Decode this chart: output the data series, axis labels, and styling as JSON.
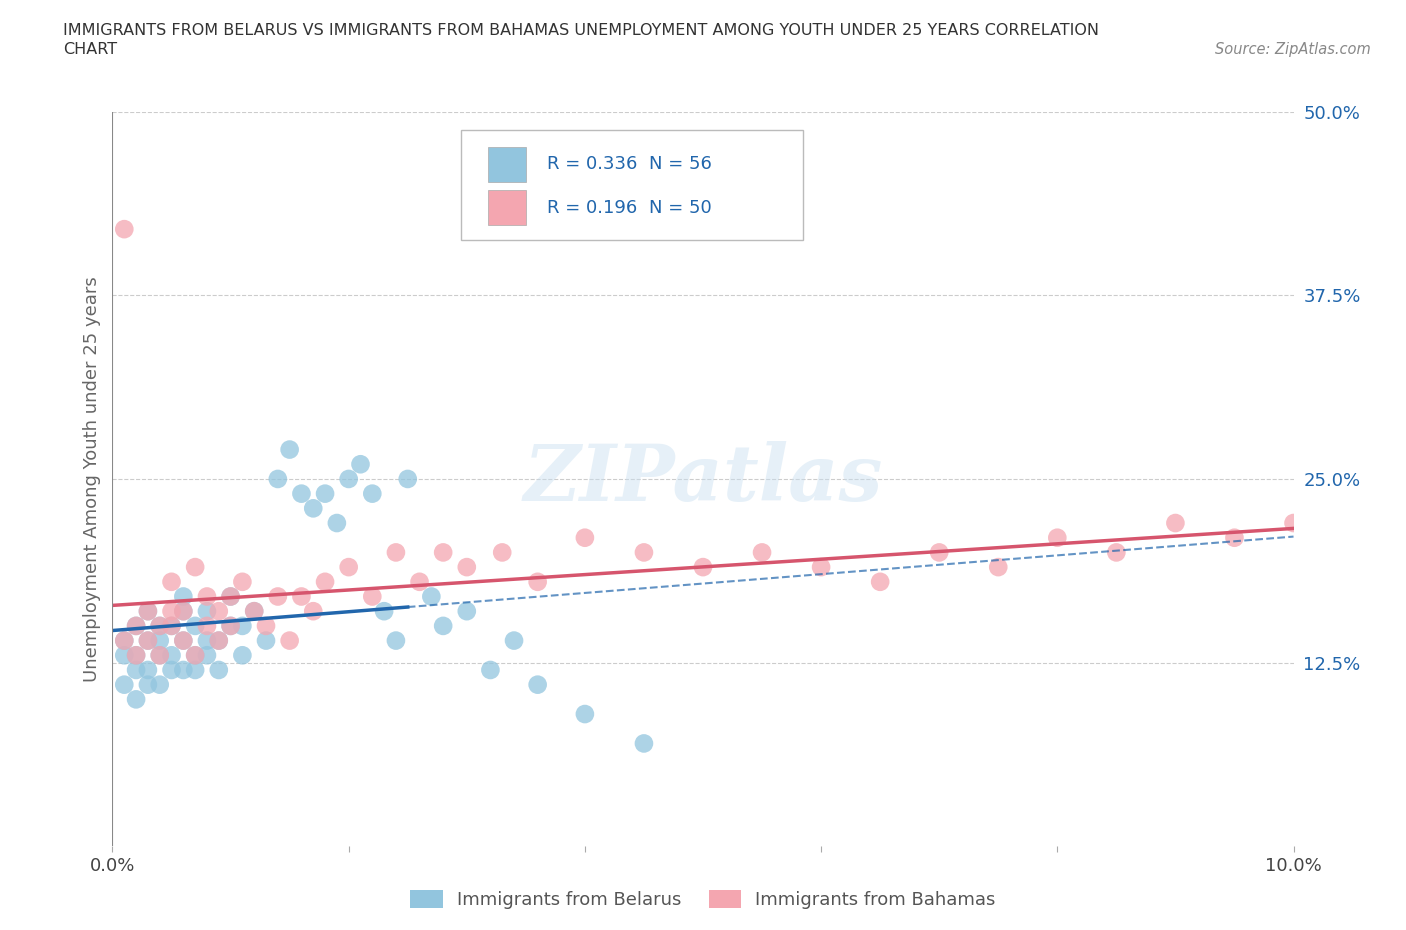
{
  "title": "IMMIGRANTS FROM BELARUS VS IMMIGRANTS FROM BAHAMAS UNEMPLOYMENT AMONG YOUTH UNDER 25 YEARS CORRELATION\nCHART",
  "source": "Source: ZipAtlas.com",
  "ylabel": "Unemployment Among Youth under 25 years",
  "legend_label1": "Immigrants from Belarus",
  "legend_label2": "Immigrants from Bahamas",
  "legend_R1": "R = 0.336",
  "legend_N1": "N = 56",
  "legend_R2": "R = 0.196",
  "legend_N2": "N = 50",
  "color1": "#92c5de",
  "color2": "#f4a6b0",
  "line_color1": "#2166ac",
  "line_color2": "#d6556d",
  "xlim": [
    0.0,
    0.1
  ],
  "ylim": [
    0.0,
    0.5
  ],
  "xtick_vals": [
    0.0,
    0.02,
    0.04,
    0.06,
    0.08,
    0.1
  ],
  "xticklabels": [
    "0.0%",
    "",
    "",
    "",
    "",
    "10.0%"
  ],
  "ytick_right": [
    0.125,
    0.25,
    0.375,
    0.5
  ],
  "ytick_right_labels": [
    "12.5%",
    "25.0%",
    "37.5%",
    "50.0%"
  ],
  "watermark": "ZIPatlas",
  "belarus_x": [
    0.001,
    0.001,
    0.001,
    0.002,
    0.002,
    0.002,
    0.002,
    0.003,
    0.003,
    0.003,
    0.003,
    0.004,
    0.004,
    0.004,
    0.004,
    0.005,
    0.005,
    0.005,
    0.006,
    0.006,
    0.006,
    0.006,
    0.007,
    0.007,
    0.007,
    0.008,
    0.008,
    0.008,
    0.009,
    0.009,
    0.01,
    0.01,
    0.011,
    0.011,
    0.012,
    0.013,
    0.014,
    0.015,
    0.016,
    0.017,
    0.018,
    0.019,
    0.02,
    0.021,
    0.022,
    0.023,
    0.024,
    0.025,
    0.027,
    0.028,
    0.03,
    0.032,
    0.034,
    0.036,
    0.04,
    0.045
  ],
  "belarus_y": [
    0.13,
    0.14,
    0.11,
    0.12,
    0.15,
    0.1,
    0.13,
    0.14,
    0.12,
    0.11,
    0.16,
    0.13,
    0.15,
    0.11,
    0.14,
    0.13,
    0.15,
    0.12,
    0.17,
    0.12,
    0.14,
    0.16,
    0.13,
    0.15,
    0.12,
    0.14,
    0.13,
    0.16,
    0.14,
    0.12,
    0.15,
    0.17,
    0.13,
    0.15,
    0.16,
    0.14,
    0.25,
    0.27,
    0.24,
    0.23,
    0.24,
    0.22,
    0.25,
    0.26,
    0.24,
    0.16,
    0.14,
    0.25,
    0.17,
    0.15,
    0.16,
    0.12,
    0.14,
    0.11,
    0.09,
    0.07
  ],
  "bahamas_x": [
    0.001,
    0.001,
    0.002,
    0.002,
    0.003,
    0.003,
    0.004,
    0.004,
    0.005,
    0.005,
    0.005,
    0.006,
    0.006,
    0.007,
    0.007,
    0.008,
    0.008,
    0.009,
    0.009,
    0.01,
    0.01,
    0.011,
    0.012,
    0.013,
    0.014,
    0.015,
    0.016,
    0.017,
    0.018,
    0.02,
    0.022,
    0.024,
    0.026,
    0.028,
    0.03,
    0.033,
    0.036,
    0.04,
    0.045,
    0.05,
    0.055,
    0.06,
    0.065,
    0.07,
    0.075,
    0.08,
    0.085,
    0.09,
    0.095,
    0.1
  ],
  "bahamas_y": [
    0.14,
    0.42,
    0.13,
    0.15,
    0.14,
    0.16,
    0.15,
    0.13,
    0.16,
    0.18,
    0.15,
    0.16,
    0.14,
    0.19,
    0.13,
    0.15,
    0.17,
    0.14,
    0.16,
    0.17,
    0.15,
    0.18,
    0.16,
    0.15,
    0.17,
    0.14,
    0.17,
    0.16,
    0.18,
    0.19,
    0.17,
    0.2,
    0.18,
    0.2,
    0.19,
    0.2,
    0.18,
    0.21,
    0.2,
    0.19,
    0.2,
    0.19,
    0.18,
    0.2,
    0.19,
    0.21,
    0.2,
    0.22,
    0.21,
    0.22
  ],
  "legend_text_color": "#2166ac",
  "legend_box_edge": "#aaaaaa"
}
